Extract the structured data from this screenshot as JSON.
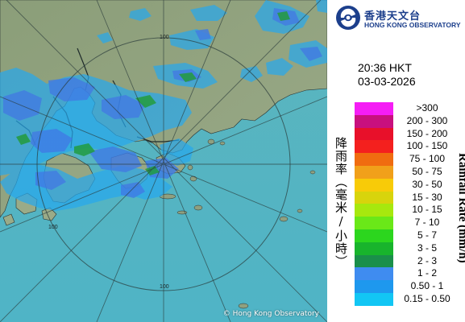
{
  "radar_time": "20:36 HKT",
  "radar_date": "03-03-2026",
  "header": {
    "org_name_zh": "香港天文台",
    "org_name_en": "HONG KONG OBSERVATORY",
    "logo_icon": "hko-logo-icon"
  },
  "map": {
    "copyright": "© Hong Kong Observatory",
    "range_labels": [
      "100",
      "100",
      "100"
    ],
    "colors": {
      "sea": "#58b8c4",
      "land": "#8ea07c",
      "range_ring": "#2a3a3a",
      "coastline": "#1e2a2a",
      "rain_light": "#27a9ee",
      "rain_moderate": "#3e7be6",
      "rain_heavy": "#1e9b3a"
    }
  },
  "legend": {
    "title_zh": "降雨率（毫米/小時）",
    "title_en": "Rainfall Rate (mm/h)",
    "items": [
      {
        "label": ">300",
        "color": "#f51df5"
      },
      {
        "label": "200 - 300",
        "color": "#c8107e"
      },
      {
        "label": "150 - 200",
        "color": "#e8102a"
      },
      {
        "label": "100 - 150",
        "color": "#f4201e"
      },
      {
        "label": "75 - 100",
        "color": "#f06c10"
      },
      {
        "label": "50 - 75",
        "color": "#f1a01a"
      },
      {
        "label": "30 - 50",
        "color": "#f8cb08"
      },
      {
        "label": "15 - 30",
        "color": "#d8d40c"
      },
      {
        "label": "10 - 15",
        "color": "#a7e80e"
      },
      {
        "label": "7 - 10",
        "color": "#6ae818"
      },
      {
        "label": "5 - 7",
        "color": "#2cd61e"
      },
      {
        "label": "3 - 5",
        "color": "#18b42c"
      },
      {
        "label": "2 - 3",
        "color": "#1a8f4a"
      },
      {
        "label": "1 - 2",
        "color": "#3f8cf0"
      },
      {
        "label": "0.50 - 1",
        "color": "#1e98ee"
      },
      {
        "label": "0.15 - 0.50",
        "color": "#12c6f4"
      }
    ]
  }
}
